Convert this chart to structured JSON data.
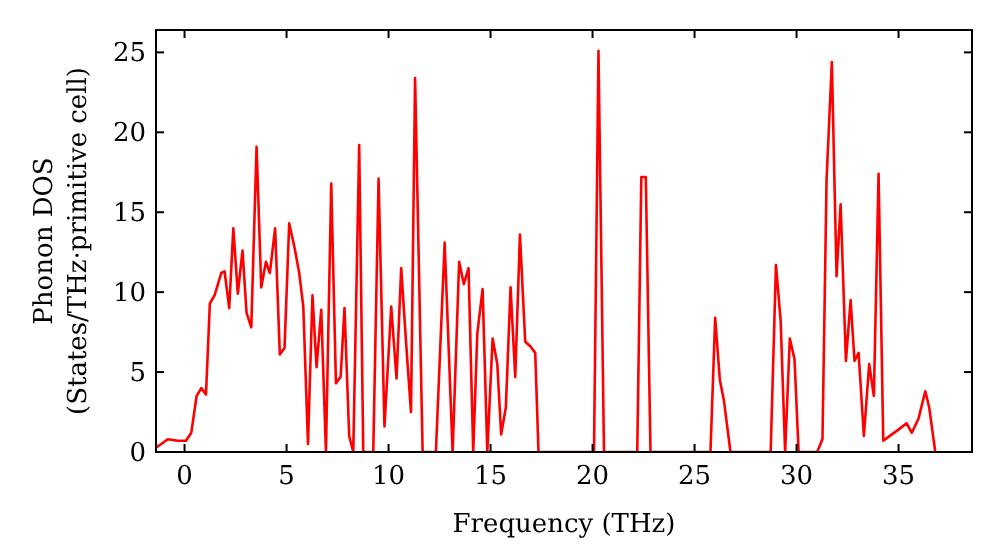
{
  "chart_data": {
    "type": "line",
    "xlabel": "Frequency (THz)",
    "ylabel": "Phonon DOS\n(States/THz·primitive cell)",
    "xlim": [
      -1.4,
      38.6
    ],
    "ylim": [
      0,
      26.4
    ],
    "xticks": [
      0,
      5,
      10,
      15,
      20,
      25,
      30,
      35
    ],
    "yticks": [
      0,
      5,
      10,
      15,
      20,
      25
    ],
    "grid": false,
    "marker": "none",
    "line_style": "solid",
    "series": [
      {
        "color": "#ff0000",
        "x": [
          -1.37,
          -1.14,
          -0.82,
          -0.33,
          0.07,
          0.33,
          0.59,
          0.82,
          1.05,
          1.24,
          1.47,
          1.8,
          1.96,
          2.19,
          2.39,
          2.61,
          2.84,
          3.04,
          3.27,
          3.53,
          3.76,
          3.99,
          4.18,
          4.44,
          4.67,
          4.9,
          5.13,
          5.39,
          5.62,
          5.82,
          6.05,
          6.27,
          6.47,
          6.7,
          6.93,
          7.19,
          7.42,
          7.65,
          7.84,
          8.07,
          8.27,
          8.56,
          8.76,
          9.25,
          9.51,
          9.8,
          10.13,
          10.39,
          10.62,
          10.85,
          11.1,
          11.3,
          11.67,
          12.32,
          12.75,
          13.14,
          13.46,
          13.69,
          13.92,
          14.15,
          14.35,
          14.61,
          14.84,
          15.1,
          15.33,
          15.52,
          15.75,
          15.98,
          16.21,
          16.44,
          16.7,
          16.96,
          17.19,
          17.35,
          20.07,
          20.29,
          20.56,
          22.19,
          22.39,
          22.61,
          22.84,
          25.78,
          26.01,
          26.24,
          26.44,
          26.76,
          28.73,
          28.99,
          29.22,
          29.44,
          29.67,
          29.9,
          30.1,
          31.01,
          31.27,
          31.47,
          31.73,
          31.96,
          32.16,
          32.42,
          32.65,
          32.84,
          33.04,
          33.3,
          33.56,
          33.79,
          34.02,
          34.25,
          34.67,
          35.0,
          35.39,
          35.65,
          35.98,
          36.31,
          36.5,
          36.8
        ],
        "values": [
          0.3,
          0.5,
          0.8,
          0.7,
          0.7,
          1.2,
          3.5,
          4,
          3.6,
          9.3,
          9.8,
          11.2,
          11.3,
          9,
          14,
          9.9,
          12.6,
          8.7,
          7.8,
          19.1,
          10.3,
          11.9,
          11.2,
          14,
          6.1,
          6.5,
          14.3,
          12.8,
          11.2,
          9.1,
          0.5,
          9.8,
          5.3,
          8.9,
          0,
          16.8,
          4.3,
          4.7,
          9,
          1,
          0,
          19.2,
          0,
          0,
          17.1,
          1.6,
          9.1,
          4.6,
          11.5,
          7,
          2.5,
          23.4,
          0,
          0,
          13.1,
          0,
          11.9,
          10.5,
          11.5,
          0,
          7.4,
          10.2,
          0,
          7.1,
          5.5,
          1.1,
          2.8,
          10.3,
          4.7,
          13.6,
          6.9,
          6.6,
          6.2,
          0,
          0,
          25.1,
          0,
          0,
          17.2,
          17.2,
          0,
          0,
          8.4,
          4.5,
          3.2,
          0,
          0,
          11.7,
          8.2,
          0,
          7.1,
          5.8,
          0,
          0,
          0.8,
          17,
          24.4,
          11,
          15.5,
          5.7,
          9.5,
          5.7,
          6.2,
          1,
          5.5,
          3.5,
          17.4,
          0.7,
          1.1,
          1.4,
          1.8,
          1.2,
          2.1,
          3.8,
          2.8,
          0
        ]
      }
    ]
  }
}
